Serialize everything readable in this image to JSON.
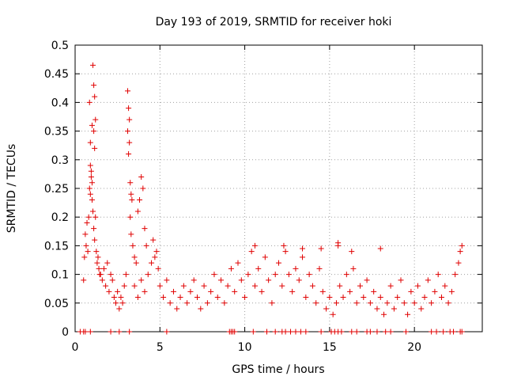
{
  "chart_data": {
    "type": "scatter",
    "title": "Day 193 of 2019, SRMTID for receiver hoki",
    "xlabel": "GPS time / hours",
    "ylabel": "SRMTID / TECUs",
    "xlim": [
      0,
      24
    ],
    "ylim": [
      0,
      0.5
    ],
    "grid": true,
    "marker": "+",
    "color": "#e00000",
    "x_ticks": [
      0,
      5,
      10,
      15,
      20
    ],
    "x_tick_labels": [
      "0",
      "5",
      "10",
      "15",
      "20"
    ],
    "y_ticks": [
      0,
      0.05,
      0.1,
      0.15,
      0.2,
      0.25,
      0.3,
      0.35,
      0.4,
      0.45,
      0.5
    ],
    "y_tick_labels": [
      "0",
      "0.05",
      "0.1",
      "0.15",
      "0.2",
      "0.25",
      "0.3",
      "0.35",
      "0.4",
      "0.45",
      "0.5"
    ],
    "series": [
      {
        "name": "SRMTID",
        "points": [
          [
            0.3,
            0.0
          ],
          [
            0.5,
            0.0
          ],
          [
            0.6,
            0.0
          ],
          [
            0.9,
            0.0
          ],
          [
            2.1,
            0.0
          ],
          [
            2.6,
            0.0
          ],
          [
            3.2,
            0.0
          ],
          [
            5.4,
            0.0
          ],
          [
            9.1,
            0.0
          ],
          [
            9.2,
            0.0
          ],
          [
            9.3,
            0.0
          ],
          [
            9.4,
            0.0
          ],
          [
            10.5,
            0.0
          ],
          [
            11.3,
            0.0
          ],
          [
            11.8,
            0.0
          ],
          [
            12.2,
            0.0
          ],
          [
            12.4,
            0.0
          ],
          [
            12.7,
            0.0
          ],
          [
            13.0,
            0.0
          ],
          [
            13.3,
            0.0
          ],
          [
            13.6,
            0.0
          ],
          [
            14.5,
            0.0
          ],
          [
            15.1,
            0.0
          ],
          [
            15.3,
            0.0
          ],
          [
            15.5,
            0.0
          ],
          [
            15.7,
            0.0
          ],
          [
            16.3,
            0.0
          ],
          [
            16.6,
            0.0
          ],
          [
            17.2,
            0.0
          ],
          [
            17.4,
            0.0
          ],
          [
            17.8,
            0.0
          ],
          [
            18.3,
            0.0
          ],
          [
            18.6,
            0.0
          ],
          [
            19.5,
            0.0
          ],
          [
            21.0,
            0.0
          ],
          [
            21.3,
            0.0
          ],
          [
            21.7,
            0.0
          ],
          [
            22.1,
            0.0
          ],
          [
            22.3,
            0.0
          ],
          [
            22.7,
            0.0
          ],
          [
            22.8,
            0.0
          ],
          [
            0.5,
            0.09
          ],
          [
            0.55,
            0.13
          ],
          [
            0.6,
            0.17
          ],
          [
            0.65,
            0.15
          ],
          [
            0.7,
            0.19
          ],
          [
            0.75,
            0.14
          ],
          [
            0.8,
            0.2
          ],
          [
            0.85,
            0.25
          ],
          [
            0.9,
            0.29
          ],
          [
            0.95,
            0.27
          ],
          [
            1.0,
            0.23
          ],
          [
            1.05,
            0.21
          ],
          [
            1.1,
            0.18
          ],
          [
            1.15,
            0.16
          ],
          [
            1.2,
            0.2
          ],
          [
            1.25,
            0.14
          ],
          [
            1.3,
            0.12
          ],
          [
            1.35,
            0.13
          ],
          [
            1.4,
            0.11
          ],
          [
            1.45,
            0.1
          ],
          [
            0.85,
            0.4
          ],
          [
            0.9,
            0.33
          ],
          [
            1.0,
            0.36
          ],
          [
            1.05,
            0.465
          ],
          [
            1.1,
            0.43
          ],
          [
            1.15,
            0.41
          ],
          [
            1.2,
            0.37
          ],
          [
            1.1,
            0.35
          ],
          [
            1.15,
            0.32
          ],
          [
            0.95,
            0.28
          ],
          [
            1.0,
            0.26
          ],
          [
            0.9,
            0.24
          ],
          [
            1.5,
            0.1
          ],
          [
            1.6,
            0.09
          ],
          [
            1.7,
            0.11
          ],
          [
            1.8,
            0.08
          ],
          [
            1.9,
            0.12
          ],
          [
            2.0,
            0.07
          ],
          [
            2.1,
            0.1
          ],
          [
            2.2,
            0.09
          ],
          [
            2.3,
            0.06
          ],
          [
            2.4,
            0.05
          ],
          [
            2.5,
            0.07
          ],
          [
            2.6,
            0.04
          ],
          [
            2.7,
            0.06
          ],
          [
            2.8,
            0.05
          ],
          [
            2.9,
            0.08
          ],
          [
            3.0,
            0.1
          ],
          [
            3.1,
            0.42
          ],
          [
            3.15,
            0.39
          ],
          [
            3.2,
            0.37
          ],
          [
            3.1,
            0.35
          ],
          [
            3.2,
            0.33
          ],
          [
            3.15,
            0.31
          ],
          [
            3.25,
            0.26
          ],
          [
            3.3,
            0.24
          ],
          [
            3.35,
            0.23
          ],
          [
            3.25,
            0.2
          ],
          [
            3.3,
            0.17
          ],
          [
            3.4,
            0.15
          ],
          [
            3.5,
            0.13
          ],
          [
            3.6,
            0.12
          ],
          [
            3.7,
            0.21
          ],
          [
            3.8,
            0.23
          ],
          [
            3.9,
            0.27
          ],
          [
            4.0,
            0.25
          ],
          [
            4.1,
            0.18
          ],
          [
            4.2,
            0.15
          ],
          [
            3.5,
            0.08
          ],
          [
            3.7,
            0.06
          ],
          [
            3.9,
            0.09
          ],
          [
            4.1,
            0.07
          ],
          [
            4.3,
            0.1
          ],
          [
            4.5,
            0.12
          ],
          [
            4.6,
            0.16
          ],
          [
            4.7,
            0.13
          ],
          [
            4.8,
            0.14
          ],
          [
            4.9,
            0.11
          ],
          [
            5.0,
            0.08
          ],
          [
            5.2,
            0.06
          ],
          [
            5.4,
            0.09
          ],
          [
            5.6,
            0.05
          ],
          [
            5.8,
            0.07
          ],
          [
            6.0,
            0.04
          ],
          [
            6.2,
            0.06
          ],
          [
            6.4,
            0.08
          ],
          [
            6.6,
            0.05
          ],
          [
            6.8,
            0.07
          ],
          [
            7.0,
            0.09
          ],
          [
            7.2,
            0.06
          ],
          [
            7.4,
            0.04
          ],
          [
            7.6,
            0.08
          ],
          [
            7.8,
            0.05
          ],
          [
            8.0,
            0.07
          ],
          [
            8.2,
            0.1
          ],
          [
            8.4,
            0.06
          ],
          [
            8.6,
            0.09
          ],
          [
            8.8,
            0.05
          ],
          [
            9.0,
            0.08
          ],
          [
            9.2,
            0.11
          ],
          [
            9.4,
            0.07
          ],
          [
            9.6,
            0.12
          ],
          [
            9.8,
            0.09
          ],
          [
            10.0,
            0.06
          ],
          [
            10.2,
            0.1
          ],
          [
            10.4,
            0.14
          ],
          [
            10.6,
            0.08
          ],
          [
            10.8,
            0.11
          ],
          [
            11.0,
            0.07
          ],
          [
            11.2,
            0.13
          ],
          [
            11.4,
            0.09
          ],
          [
            11.6,
            0.05
          ],
          [
            11.8,
            0.1
          ],
          [
            12.0,
            0.12
          ],
          [
            12.2,
            0.08
          ],
          [
            12.4,
            0.14
          ],
          [
            12.6,
            0.1
          ],
          [
            12.8,
            0.07
          ],
          [
            13.0,
            0.11
          ],
          [
            13.2,
            0.09
          ],
          [
            13.4,
            0.13
          ],
          [
            13.6,
            0.06
          ],
          [
            13.8,
            0.1
          ],
          [
            14.0,
            0.08
          ],
          [
            14.2,
            0.05
          ],
          [
            14.4,
            0.11
          ],
          [
            14.6,
            0.07
          ],
          [
            14.8,
            0.04
          ],
          [
            15.0,
            0.06
          ],
          [
            15.2,
            0.03
          ],
          [
            15.4,
            0.05
          ],
          [
            15.6,
            0.08
          ],
          [
            15.8,
            0.06
          ],
          [
            16.0,
            0.1
          ],
          [
            16.2,
            0.07
          ],
          [
            16.4,
            0.11
          ],
          [
            16.6,
            0.05
          ],
          [
            16.8,
            0.08
          ],
          [
            17.0,
            0.06
          ],
          [
            17.2,
            0.09
          ],
          [
            17.4,
            0.05
          ],
          [
            17.6,
            0.07
          ],
          [
            17.8,
            0.04
          ],
          [
            18.0,
            0.06
          ],
          [
            18.2,
            0.03
          ],
          [
            18.4,
            0.05
          ],
          [
            18.6,
            0.08
          ],
          [
            18.8,
            0.04
          ],
          [
            19.0,
            0.06
          ],
          [
            19.2,
            0.09
          ],
          [
            19.4,
            0.05
          ],
          [
            19.6,
            0.03
          ],
          [
            19.8,
            0.07
          ],
          [
            20.0,
            0.05
          ],
          [
            20.2,
            0.08
          ],
          [
            20.4,
            0.04
          ],
          [
            20.6,
            0.06
          ],
          [
            20.8,
            0.09
          ],
          [
            21.0,
            0.05
          ],
          [
            21.2,
            0.07
          ],
          [
            21.4,
            0.1
          ],
          [
            21.6,
            0.06
          ],
          [
            21.8,
            0.08
          ],
          [
            22.0,
            0.05
          ],
          [
            22.2,
            0.07
          ],
          [
            22.4,
            0.1
          ],
          [
            22.6,
            0.12
          ],
          [
            22.7,
            0.14
          ],
          [
            22.8,
            0.15
          ],
          [
            15.5,
            0.155
          ],
          [
            15.5,
            0.15
          ],
          [
            16.3,
            0.14
          ],
          [
            18.0,
            0.145
          ],
          [
            10.6,
            0.15
          ],
          [
            13.4,
            0.145
          ],
          [
            12.3,
            0.15
          ],
          [
            14.5,
            0.145
          ]
        ]
      }
    ]
  }
}
